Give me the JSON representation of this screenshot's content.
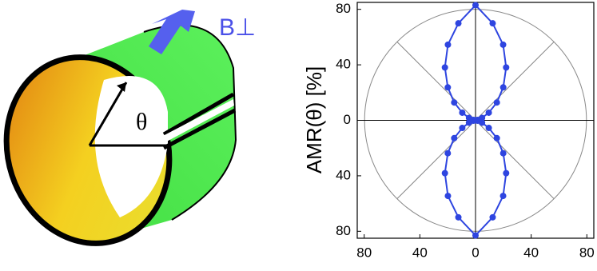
{
  "chart_data": {
    "type": "polar",
    "ylabel": "AMR(θ) [%]",
    "annotations": [
      "B⊥",
      "θ"
    ],
    "theta": [
      0,
      10,
      20,
      30,
      40,
      50,
      60,
      70,
      80,
      90,
      100,
      110,
      120,
      130,
      140,
      150,
      160,
      170,
      180,
      190,
      200,
      210,
      220,
      230,
      240,
      250,
      260,
      270,
      280,
      290,
      300,
      310,
      320,
      330,
      340,
      350
    ],
    "series": [
      {
        "color": "#2e45e0",
        "values": [
          83,
          71,
          58,
          44,
          31,
          20,
          11,
          5,
          1.5,
          0.5,
          1.5,
          5,
          11,
          20,
          31,
          44,
          58,
          71,
          83,
          71,
          58,
          44,
          31,
          20,
          11,
          5,
          1.5,
          0.5,
          1.5,
          5,
          11,
          20,
          31,
          44,
          58,
          71
        ]
      }
    ],
    "xlim": [
      -85,
      85
    ],
    "ylim": [
      -85,
      85
    ],
    "xticks": [
      {
        "value": -80,
        "label": "80"
      },
      {
        "value": -40,
        "label": "40"
      },
      0,
      40,
      80
    ],
    "yticks": [
      {
        "value": -80,
        "label": "80"
      },
      {
        "value": -40,
        "label": "40"
      },
      0,
      40,
      80
    ],
    "grid": true
  }
}
